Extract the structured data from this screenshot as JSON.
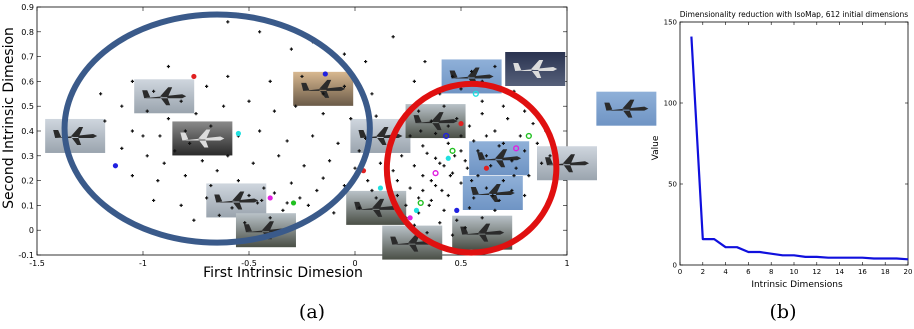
{
  "colors": {
    "ellipse_left": "#3a5a8a",
    "ellipse_right": "#e01010",
    "line": "#1010dd",
    "point": "#111111"
  },
  "chart_data": [
    {
      "type": "scatter",
      "panel_label": "(a)",
      "xlabel": "First Intrinsic Dimesion",
      "ylabel": "Second Intrinsic Dimesion",
      "xlim": [
        -1.5,
        1.0
      ],
      "ylim": [
        -0.1,
        0.9
      ],
      "x_ticks": [
        "-1.5",
        "-1",
        "-0.5",
        "0",
        "0.5",
        "1"
      ],
      "y_ticks": [
        "-0.1",
        "0",
        "0.1",
        "0.2",
        "0.3",
        "0.4",
        "0.5",
        "0.6",
        "0.7",
        "0.8",
        "0.9"
      ],
      "annotations": [
        {
          "shape": "ellipse",
          "color": "blue",
          "center": [
            -0.65,
            0.41
          ],
          "rx": 0.72,
          "ry": 0.46
        },
        {
          "shape": "ellipse",
          "color": "red",
          "center": [
            0.55,
            0.25
          ],
          "rx": 0.4,
          "ry": 0.34
        }
      ],
      "image_thumbnails": [
        {
          "subject": "airliner taking off",
          "at": [
            -0.9,
            0.54
          ]
        },
        {
          "subject": "airliner in flight",
          "at": [
            -0.15,
            0.57
          ]
        },
        {
          "subject": "black and white aircraft",
          "at": [
            -0.72,
            0.37
          ]
        },
        {
          "subject": "airliner on runway",
          "at": [
            -1.32,
            0.38
          ]
        },
        {
          "subject": "airliner in haze",
          "at": [
            -0.56,
            0.12
          ]
        },
        {
          "subject": "airliner landing",
          "at": [
            -0.42,
            0.0
          ]
        },
        {
          "subject": "airliner landing",
          "at": [
            0.1,
            0.09
          ]
        },
        {
          "subject": "aircraft on apron",
          "at": [
            0.12,
            0.38
          ]
        },
        {
          "subject": "aircraft on ground",
          "at": [
            0.38,
            0.44
          ]
        },
        {
          "subject": "airliner in flight",
          "at": [
            0.55,
            0.62
          ]
        },
        {
          "subject": "military jet in flight",
          "at": [
            0.85,
            0.65
          ]
        },
        {
          "subject": "fighter jet in sky",
          "at": [
            1.28,
            0.49
          ]
        },
        {
          "subject": "jet in blue sky",
          "at": [
            0.68,
            0.29
          ]
        },
        {
          "subject": "fighter jet",
          "at": [
            1.0,
            0.27
          ]
        },
        {
          "subject": "jet climbing",
          "at": [
            0.65,
            0.15
          ]
        },
        {
          "subject": "airliner on ground",
          "at": [
            0.6,
            -0.01
          ]
        },
        {
          "subject": "aircraft at airport",
          "at": [
            0.27,
            -0.05
          ]
        }
      ],
      "points": [
        [
          -0.88,
          0.66
        ],
        [
          -0.6,
          0.84
        ],
        [
          -0.55,
          0.87
        ],
        [
          -0.45,
          0.8
        ],
        [
          -0.3,
          0.73
        ],
        [
          -0.2,
          0.76
        ],
        [
          -0.05,
          0.71
        ],
        [
          0.05,
          0.68
        ],
        [
          0.18,
          0.78
        ],
        [
          -1.05,
          0.6
        ],
        [
          -0.95,
          0.56
        ],
        [
          -0.82,
          0.52
        ],
        [
          -0.7,
          0.58
        ],
        [
          -0.6,
          0.62
        ],
        [
          -0.4,
          0.6
        ],
        [
          -0.25,
          0.62
        ],
        [
          -0.15,
          0.55
        ],
        [
          -0.05,
          0.58
        ],
        [
          0.08,
          0.55
        ],
        [
          -1.2,
          0.55
        ],
        [
          -1.1,
          0.5
        ],
        [
          -0.98,
          0.48
        ],
        [
          -0.88,
          0.45
        ],
        [
          -0.75,
          0.47
        ],
        [
          -0.62,
          0.5
        ],
        [
          -0.5,
          0.52
        ],
        [
          -0.38,
          0.48
        ],
        [
          -0.28,
          0.5
        ],
        [
          -0.15,
          0.47
        ],
        [
          -0.02,
          0.45
        ],
        [
          0.1,
          0.46
        ],
        [
          -1.18,
          0.44
        ],
        [
          -1.05,
          0.4
        ],
        [
          -0.92,
          0.38
        ],
        [
          -0.8,
          0.4
        ],
        [
          -0.68,
          0.42
        ],
        [
          -0.55,
          0.38
        ],
        [
          -0.45,
          0.4
        ],
        [
          -0.32,
          0.36
        ],
        [
          -0.2,
          0.38
        ],
        [
          -0.08,
          0.35
        ],
        [
          0.05,
          0.37
        ],
        [
          -1.1,
          0.33
        ],
        [
          -0.98,
          0.3
        ],
        [
          -0.85,
          0.32
        ],
        [
          -0.72,
          0.28
        ],
        [
          -0.6,
          0.3
        ],
        [
          -0.48,
          0.27
        ],
        [
          -0.36,
          0.3
        ],
        [
          -0.24,
          0.26
        ],
        [
          -0.12,
          0.28
        ],
        [
          0.0,
          0.25
        ],
        [
          0.12,
          0.27
        ],
        [
          -1.05,
          0.22
        ],
        [
          -0.93,
          0.2
        ],
        [
          -0.8,
          0.22
        ],
        [
          -0.68,
          0.18
        ],
        [
          -0.55,
          0.2
        ],
        [
          -0.43,
          0.17
        ],
        [
          -0.3,
          0.19
        ],
        [
          -0.18,
          0.16
        ],
        [
          -0.05,
          0.18
        ],
        [
          0.08,
          0.16
        ],
        [
          -0.95,
          0.12
        ],
        [
          -0.82,
          0.1
        ],
        [
          -0.7,
          0.13
        ],
        [
          -0.58,
          0.09
        ],
        [
          -0.46,
          0.11
        ],
        [
          -0.34,
          0.08
        ],
        [
          -0.22,
          0.1
        ],
        [
          -0.1,
          0.07
        ],
        [
          0.02,
          0.09
        ],
        [
          -0.76,
          0.04
        ],
        [
          -0.64,
          0.06
        ],
        [
          -0.52,
          0.03
        ],
        [
          -0.4,
          0.05
        ],
        [
          -0.28,
          0.02
        ],
        [
          -0.5,
          0.14
        ],
        [
          -0.44,
          0.12
        ],
        [
          -0.38,
          0.15
        ],
        [
          -0.32,
          0.11
        ],
        [
          -0.26,
          0.13
        ],
        [
          -1.0,
          0.38
        ],
        [
          -0.9,
          0.27
        ],
        [
          -0.78,
          0.35
        ],
        [
          0.02,
          0.32
        ],
        [
          0.06,
          0.2
        ],
        [
          0.1,
          0.13
        ],
        [
          -0.15,
          0.21
        ],
        [
          -0.65,
          0.24
        ],
        [
          0.28,
          0.6
        ],
        [
          0.33,
          0.68
        ],
        [
          0.4,
          0.55
        ],
        [
          0.46,
          0.62
        ],
        [
          0.5,
          0.57
        ],
        [
          0.55,
          0.64
        ],
        [
          0.6,
          0.52
        ],
        [
          0.65,
          0.58
        ],
        [
          0.7,
          0.5
        ],
        [
          0.75,
          0.56
        ],
        [
          0.3,
          0.48
        ],
        [
          0.36,
          0.44
        ],
        [
          0.42,
          0.5
        ],
        [
          0.48,
          0.45
        ],
        [
          0.54,
          0.42
        ],
        [
          0.6,
          0.47
        ],
        [
          0.66,
          0.4
        ],
        [
          0.72,
          0.45
        ],
        [
          0.78,
          0.38
        ],
        [
          0.84,
          0.43
        ],
        [
          0.26,
          0.38
        ],
        [
          0.32,
          0.34
        ],
        [
          0.38,
          0.39
        ],
        [
          0.44,
          0.35
        ],
        [
          0.5,
          0.32
        ],
        [
          0.56,
          0.36
        ],
        [
          0.62,
          0.3
        ],
        [
          0.68,
          0.34
        ],
        [
          0.74,
          0.28
        ],
        [
          0.8,
          0.32
        ],
        [
          0.86,
          0.35
        ],
        [
          0.92,
          0.3
        ],
        [
          0.22,
          0.3
        ],
        [
          0.28,
          0.26
        ],
        [
          0.34,
          0.31
        ],
        [
          0.4,
          0.27
        ],
        [
          0.46,
          0.23
        ],
        [
          0.52,
          0.28
        ],
        [
          0.58,
          0.22
        ],
        [
          0.64,
          0.26
        ],
        [
          0.7,
          0.2
        ],
        [
          0.76,
          0.25
        ],
        [
          0.82,
          0.22
        ],
        [
          0.88,
          0.27
        ],
        [
          0.2,
          0.2
        ],
        [
          0.26,
          0.17
        ],
        [
          0.32,
          0.22
        ],
        [
          0.38,
          0.18
        ],
        [
          0.44,
          0.14
        ],
        [
          0.5,
          0.19
        ],
        [
          0.56,
          0.13
        ],
        [
          0.62,
          0.17
        ],
        [
          0.68,
          0.12
        ],
        [
          0.74,
          0.16
        ],
        [
          0.8,
          0.14
        ],
        [
          0.24,
          0.1
        ],
        [
          0.3,
          0.07
        ],
        [
          0.36,
          0.12
        ],
        [
          0.42,
          0.08
        ],
        [
          0.48,
          0.04
        ],
        [
          0.54,
          0.09
        ],
        [
          0.6,
          0.05
        ],
        [
          0.66,
          0.08
        ],
        [
          0.28,
          0.02
        ],
        [
          0.34,
          -0.01
        ],
        [
          0.4,
          0.03
        ],
        [
          0.46,
          -0.02
        ],
        [
          0.52,
          0.01
        ],
        [
          0.42,
          0.26
        ],
        [
          0.47,
          0.3
        ],
        [
          0.53,
          0.25
        ],
        [
          0.36,
          0.2
        ],
        [
          0.41,
          0.16
        ],
        [
          0.3,
          0.13
        ],
        [
          0.35,
          0.1
        ],
        [
          0.45,
          0.22
        ],
        [
          0.55,
          0.2
        ],
        [
          0.58,
          0.32
        ],
        [
          0.5,
          0.38
        ],
        [
          0.44,
          0.42
        ],
        [
          0.38,
          0.29
        ],
        [
          0.32,
          0.16
        ],
        [
          0.62,
          0.38
        ],
        [
          0.7,
          0.35
        ],
        [
          0.75,
          0.22
        ],
        [
          0.65,
          0.14
        ],
        [
          0.2,
          0.14
        ],
        [
          0.18,
          0.24
        ],
        [
          0.24,
          0.05
        ],
        [
          0.31,
          0.4
        ],
        [
          0.6,
          0.6
        ],
        [
          0.66,
          0.66
        ],
        [
          0.8,
          0.48
        ],
        [
          0.9,
          0.4
        ]
      ],
      "colored_markers": [
        {
          "x": -0.76,
          "y": 0.62,
          "color": "#e02020",
          "shape": "dot"
        },
        {
          "x": -0.14,
          "y": 0.63,
          "color": "#2020e0",
          "shape": "dot"
        },
        {
          "x": -0.55,
          "y": 0.39,
          "color": "#20e0e0",
          "shape": "dot"
        },
        {
          "x": -1.13,
          "y": 0.26,
          "color": "#2020e0",
          "shape": "dot"
        },
        {
          "x": -0.4,
          "y": 0.13,
          "color": "#e020e0",
          "shape": "dot"
        },
        {
          "x": -0.29,
          "y": 0.11,
          "color": "#20c020",
          "shape": "dot"
        },
        {
          "x": 0.04,
          "y": 0.24,
          "color": "#e02020",
          "shape": "dot"
        },
        {
          "x": 0.12,
          "y": 0.17,
          "color": "#20e0e0",
          "shape": "dot"
        },
        {
          "x": 0.57,
          "y": 0.55,
          "color": "#20e0e0",
          "shape": "circle"
        },
        {
          "x": 0.5,
          "y": 0.43,
          "color": "#e02020",
          "shape": "dot"
        },
        {
          "x": 0.43,
          "y": 0.38,
          "color": "#2020e0",
          "shape": "circle"
        },
        {
          "x": 0.82,
          "y": 0.38,
          "color": "#20c020",
          "shape": "circle"
        },
        {
          "x": 0.76,
          "y": 0.33,
          "color": "#e020e0",
          "shape": "circle"
        },
        {
          "x": 0.46,
          "y": 0.32,
          "color": "#20c020",
          "shape": "circle"
        },
        {
          "x": 0.44,
          "y": 0.29,
          "color": "#20e0e0",
          "shape": "dot"
        },
        {
          "x": 0.38,
          "y": 0.23,
          "color": "#e020e0",
          "shape": "circle"
        },
        {
          "x": 0.31,
          "y": 0.11,
          "color": "#20c020",
          "shape": "circle"
        },
        {
          "x": 0.29,
          "y": 0.08,
          "color": "#20e0e0",
          "shape": "dot"
        },
        {
          "x": 0.26,
          "y": 0.05,
          "color": "#e020e0",
          "shape": "dot"
        },
        {
          "x": 0.48,
          "y": 0.08,
          "color": "#2020e0",
          "shape": "dot"
        },
        {
          "x": 0.62,
          "y": 0.25,
          "color": "#e02020",
          "shape": "dot"
        }
      ],
      "grid": false
    },
    {
      "type": "line",
      "panel_label": "(b)",
      "title": "Dimensionality reduction with IsoMap, 612 initial dimensions",
      "xlabel": "Intrinsic Dimensions",
      "ylabel": "Value",
      "xlim": [
        0,
        20
      ],
      "ylim": [
        0,
        150
      ],
      "x_ticks": [
        "0",
        "2",
        "4",
        "6",
        "8",
        "10",
        "12",
        "14",
        "16",
        "18",
        "20"
      ],
      "y_ticks": [
        "0",
        "50",
        "100",
        "150"
      ],
      "series": [
        {
          "color": "#1010dd",
          "x": [
            1,
            2,
            3,
            4,
            5,
            6,
            7,
            8,
            9,
            10,
            11,
            12,
            13,
            14,
            15,
            16,
            17,
            18,
            19,
            20
          ],
          "values": [
            141,
            16,
            16,
            11,
            11,
            8,
            8,
            7,
            6,
            6,
            5,
            5,
            4.5,
            4.5,
            4.5,
            4.5,
            4,
            4,
            4,
            3.5
          ]
        }
      ],
      "grid": false
    }
  ]
}
